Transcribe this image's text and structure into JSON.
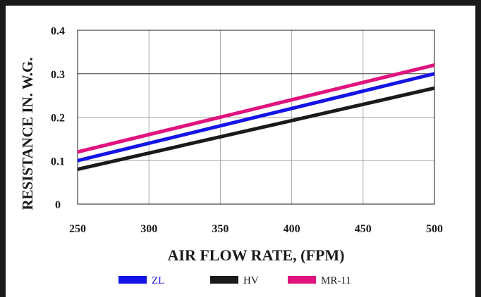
{
  "chart_data": {
    "type": "line",
    "title": "",
    "xlabel": "AIR FLOW RATE, (FPM)",
    "ylabel": "RESISTANCE IN. W.G.",
    "x": [
      250,
      500
    ],
    "xticks": [
      "250",
      "300",
      "350",
      "400",
      "450",
      "500"
    ],
    "xlim": [
      250,
      500
    ],
    "yticks": [
      "0",
      "0.1",
      "0.2",
      "0.3",
      "0.4"
    ],
    "ylim": [
      0,
      0.4
    ],
    "grid": true,
    "legend_position": "bottom",
    "series": [
      {
        "name": "ZL",
        "values": [
          0.1,
          0.3
        ],
        "color": "#1414e6",
        "label_color": "#1414e6"
      },
      {
        "name": "HV",
        "values": [
          0.08,
          0.267
        ],
        "color": "#1a1a1a",
        "label_color": "#1a1a1a"
      },
      {
        "name": "MR-11",
        "values": [
          0.12,
          0.32
        ],
        "color": "#e0137f",
        "label_color": "#1a1a1a"
      }
    ]
  }
}
